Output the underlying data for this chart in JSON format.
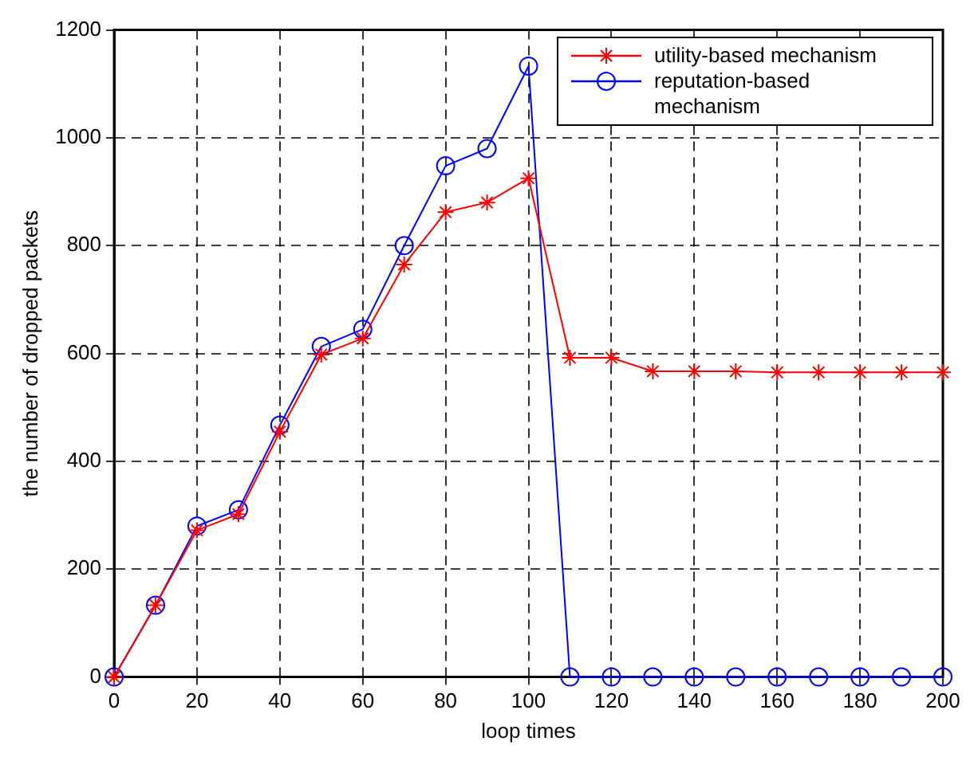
{
  "chart_data": {
    "type": "line",
    "xlabel": "loop times",
    "ylabel": "the number of dropped packets",
    "x": [
      0,
      10,
      20,
      30,
      40,
      50,
      60,
      70,
      80,
      90,
      100,
      110,
      120,
      130,
      140,
      150,
      160,
      170,
      180,
      190,
      200
    ],
    "xlim": [
      0,
      200
    ],
    "xticks": [
      0,
      20,
      40,
      60,
      80,
      100,
      120,
      140,
      160,
      180,
      200
    ],
    "ylim": [
      0,
      1200
    ],
    "yticks": [
      0,
      200,
      400,
      600,
      800,
      1000,
      1200
    ],
    "grid": true,
    "legend": "top right",
    "series": [
      {
        "name": "utility-based mechanism",
        "color": "#ff0000",
        "marker": "cross",
        "values": [
          0,
          133,
          272,
          302,
          455,
          598,
          628,
          765,
          862,
          880,
          925,
          592,
          592,
          567,
          567,
          567,
          565,
          565,
          565,
          565,
          565
        ]
      },
      {
        "name": "reputation-based mechanism",
        "color": "#0000ff",
        "marker": "circle",
        "values": [
          0,
          133,
          280,
          310,
          467,
          613,
          645,
          800,
          948,
          980,
          1133,
          0,
          0,
          0,
          0,
          0,
          0,
          0,
          0,
          0,
          0
        ]
      }
    ]
  }
}
